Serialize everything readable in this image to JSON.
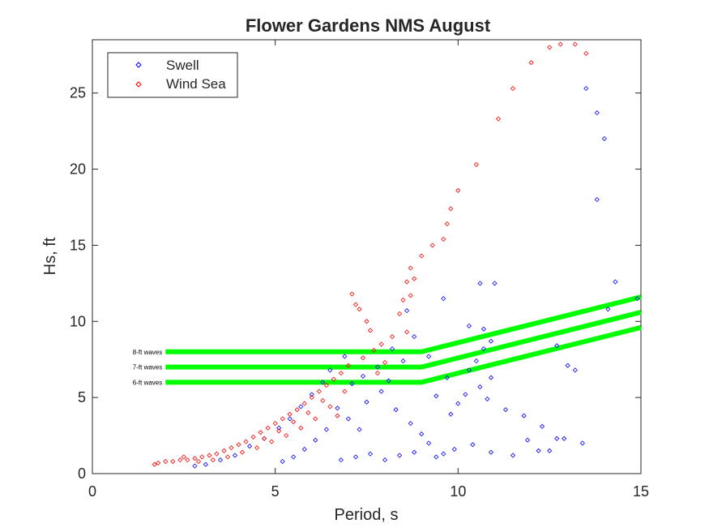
{
  "chart_data": {
    "type": "scatter",
    "title": "Flower Gardens NMS August",
    "xlabel": "Period, s",
    "ylabel": "Hs, ft",
    "xlim": [
      0,
      15
    ],
    "ylim": [
      0,
      28.5
    ],
    "xticks": [
      0,
      5,
      10,
      15
    ],
    "yticks": [
      0,
      5,
      10,
      15,
      20,
      25
    ],
    "grid": false,
    "legend_position": "top-left",
    "colors": {
      "swell": "#0000ff",
      "wind_sea": "#ff0000",
      "threshold": "#00ff00",
      "axes": "#262626"
    },
    "series": [
      {
        "name": "Swell",
        "marker": "diamond",
        "color": "#0000ff",
        "points": [
          [
            13.5,
            25.3
          ],
          [
            13.8,
            23.7
          ],
          [
            14.0,
            22.0
          ],
          [
            13.8,
            18.0
          ],
          [
            14.3,
            12.6
          ],
          [
            14.9,
            11.5
          ],
          [
            14.1,
            10.8
          ],
          [
            13.0,
            7.1
          ],
          [
            12.7,
            8.4
          ],
          [
            13.2,
            6.8
          ],
          [
            12.7,
            2.3
          ],
          [
            12.9,
            2.3
          ],
          [
            13.4,
            2.0
          ],
          [
            12.5,
            1.5
          ],
          [
            11.0,
            12.5
          ],
          [
            10.6,
            12.5
          ],
          [
            10.7,
            9.5
          ],
          [
            10.9,
            8.7
          ],
          [
            10.7,
            8.2
          ],
          [
            10.5,
            7.4
          ],
          [
            10.3,
            6.8
          ],
          [
            10.9,
            6.3
          ],
          [
            10.6,
            5.7
          ],
          [
            10.2,
            5.2
          ],
          [
            10.0,
            4.6
          ],
          [
            10.8,
            4.9
          ],
          [
            11.3,
            4.2
          ],
          [
            11.8,
            3.8
          ],
          [
            12.3,
            3.1
          ],
          [
            11.9,
            2.2
          ],
          [
            12.2,
            1.5
          ],
          [
            11.5,
            1.2
          ],
          [
            10.9,
            1.4
          ],
          [
            10.4,
            1.9
          ],
          [
            9.9,
            1.6
          ],
          [
            9.6,
            1.3
          ],
          [
            9.4,
            1.1
          ],
          [
            9.2,
            2.0
          ],
          [
            8.8,
            1.4
          ],
          [
            8.4,
            1.2
          ],
          [
            8.0,
            0.9
          ],
          [
            7.6,
            1.3
          ],
          [
            7.2,
            1.1
          ],
          [
            6.8,
            0.9
          ],
          [
            9.7,
            6.3
          ],
          [
            9.2,
            7.7
          ],
          [
            8.8,
            9.0
          ],
          [
            8.6,
            10.7
          ],
          [
            8.2,
            8.2
          ],
          [
            8.5,
            7.4
          ],
          [
            7.8,
            7.0
          ],
          [
            8.1,
            6.1
          ],
          [
            9.4,
            5.1
          ],
          [
            9.8,
            3.9
          ],
          [
            9.6,
            11.5
          ],
          [
            10.3,
            9.7
          ],
          [
            6.9,
            7.7
          ],
          [
            6.5,
            6.8
          ],
          [
            6.3,
            6.0
          ],
          [
            6.0,
            5.2
          ],
          [
            5.7,
            4.4
          ],
          [
            5.4,
            3.6
          ],
          [
            5.1,
            3.0
          ],
          [
            4.7,
            2.3
          ],
          [
            4.3,
            1.8
          ],
          [
            3.9,
            1.2
          ],
          [
            3.5,
            0.9
          ],
          [
            3.1,
            0.6
          ],
          [
            2.8,
            0.5
          ],
          [
            6.4,
            2.9
          ],
          [
            6.1,
            2.2
          ],
          [
            5.8,
            1.6
          ],
          [
            5.5,
            1.1
          ],
          [
            5.2,
            0.8
          ],
          [
            6.7,
            4.3
          ],
          [
            7.0,
            3.6
          ],
          [
            7.3,
            2.9
          ],
          [
            7.5,
            4.7
          ],
          [
            7.9,
            5.4
          ],
          [
            8.3,
            4.2
          ],
          [
            8.7,
            3.3
          ],
          [
            9.0,
            2.6
          ],
          [
            7.1,
            5.9
          ],
          [
            7.4,
            6.4
          ]
        ]
      },
      {
        "name": "Wind Sea",
        "marker": "diamond",
        "color": "#ff0000",
        "points": [
          [
            12.8,
            28.2
          ],
          [
            13.2,
            28.2
          ],
          [
            12.5,
            28.0
          ],
          [
            13.5,
            27.6
          ],
          [
            12.0,
            27.0
          ],
          [
            11.5,
            25.3
          ],
          [
            11.1,
            23.3
          ],
          [
            10.5,
            20.3
          ],
          [
            10.0,
            18.6
          ],
          [
            9.8,
            17.4
          ],
          [
            9.7,
            16.4
          ],
          [
            9.6,
            15.4
          ],
          [
            9.3,
            15.0
          ],
          [
            9.0,
            14.3
          ],
          [
            8.7,
            13.5
          ],
          [
            8.8,
            12.8
          ],
          [
            8.6,
            12.6
          ],
          [
            8.5,
            11.4
          ],
          [
            8.7,
            11.7
          ],
          [
            8.4,
            10.5
          ],
          [
            8.6,
            9.3
          ],
          [
            7.1,
            11.8
          ],
          [
            7.2,
            11.1
          ],
          [
            7.3,
            10.8
          ],
          [
            7.5,
            10.0
          ],
          [
            7.6,
            9.4
          ],
          [
            8.2,
            9.0
          ],
          [
            7.9,
            8.5
          ],
          [
            7.7,
            8.1
          ],
          [
            7.4,
            7.6
          ],
          [
            7.0,
            7.1
          ],
          [
            6.8,
            6.6
          ],
          [
            6.6,
            6.2
          ],
          [
            6.4,
            5.8
          ],
          [
            6.2,
            5.4
          ],
          [
            6.0,
            5.0
          ],
          [
            5.8,
            4.6
          ],
          [
            5.6,
            4.2
          ],
          [
            5.4,
            3.9
          ],
          [
            5.2,
            3.6
          ],
          [
            5.0,
            3.3
          ],
          [
            4.8,
            3.0
          ],
          [
            4.6,
            2.7
          ],
          [
            4.4,
            2.4
          ],
          [
            4.2,
            2.1
          ],
          [
            4.0,
            1.9
          ],
          [
            3.8,
            1.7
          ],
          [
            3.6,
            1.5
          ],
          [
            3.4,
            1.3
          ],
          [
            3.2,
            1.2
          ],
          [
            3.0,
            1.1
          ],
          [
            2.8,
            1.0
          ],
          [
            2.6,
            0.9
          ],
          [
            2.4,
            0.9
          ],
          [
            2.2,
            0.8
          ],
          [
            2.0,
            0.8
          ],
          [
            1.8,
            0.7
          ],
          [
            1.7,
            0.6
          ],
          [
            6.5,
            4.4
          ],
          [
            6.1,
            3.6
          ],
          [
            5.7,
            3.0
          ],
          [
            5.3,
            2.5
          ],
          [
            4.9,
            2.1
          ],
          [
            4.5,
            1.7
          ],
          [
            4.1,
            1.4
          ],
          [
            3.7,
            1.1
          ],
          [
            6.9,
            5.4
          ],
          [
            6.3,
            4.8
          ],
          [
            5.9,
            4.0
          ],
          [
            5.5,
            3.4
          ],
          [
            5.1,
            2.8
          ],
          [
            4.7,
            2.3
          ],
          [
            7.8,
            6.6
          ],
          [
            8.0,
            7.3
          ],
          [
            6.7,
            3.8
          ],
          [
            3.3,
            0.9
          ],
          [
            2.9,
            0.8
          ],
          [
            2.5,
            1.1
          ]
        ]
      }
    ],
    "threshold_lines": [
      {
        "label": "8-ft waves",
        "points": [
          [
            2.0,
            8.0
          ],
          [
            9.0,
            8.0
          ],
          [
            15.0,
            11.6
          ]
        ]
      },
      {
        "label": "7-ft waves",
        "points": [
          [
            2.0,
            7.0
          ],
          [
            9.0,
            7.0
          ],
          [
            15.0,
            10.6
          ]
        ]
      },
      {
        "label": "6-ft waves",
        "points": [
          [
            2.0,
            6.0
          ],
          [
            9.0,
            6.0
          ],
          [
            15.0,
            9.6
          ]
        ]
      }
    ]
  }
}
